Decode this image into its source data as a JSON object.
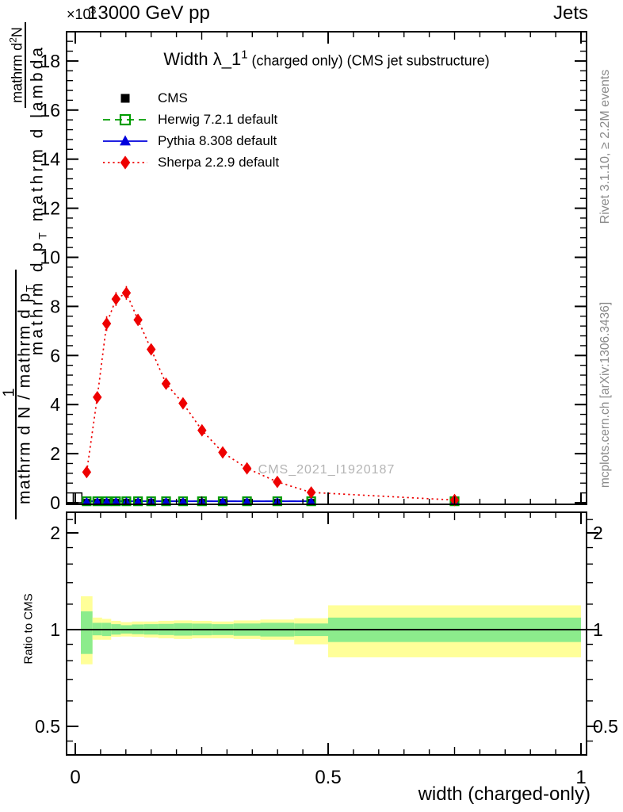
{
  "header": {
    "scale_label": "×10^{3}",
    "beam": "13000 GeV pp",
    "right": "Jets"
  },
  "title": {
    "main": "Width λ_1^{1}",
    "suffix": " (charged only) (CMS jet substructure)"
  },
  "watermark": "CMS_2021_I1920187",
  "side_notes": {
    "top": "Rivet 3.1.10, ≥ 2.2M events",
    "bottom": "mcplots.cern.ch [arXiv:1306.3436]"
  },
  "ylabel_fractions": {
    "f1_num": "1",
    "f1_den": "mathrm d N / mathrm d p_{T}",
    "f2_num": "mathrm d^{2}N",
    "f2_den": "mathrm d p_{T} mathrm d lambda"
  },
  "ratio_ylabel": "Ratio to CMS",
  "xlabel": "width (charged-only)",
  "legend": [
    {
      "label": "CMS",
      "marker": "square-filled",
      "line": "none",
      "color": "#000000"
    },
    {
      "label": "Herwig 7.2.1 default",
      "marker": "square-open",
      "line": "dashed",
      "color": "#009c00"
    },
    {
      "label": "Pythia 8.308 default",
      "marker": "triangle-filled",
      "line": "solid",
      "color": "#0000dd"
    },
    {
      "label": "Sherpa 2.2.9 default",
      "marker": "diamond-filled",
      "line": "dotted",
      "color": "#ee0000"
    }
  ],
  "chart_data": {
    "type": "line",
    "title": "Width λ_1^1 (charged only) (CMS jet substructure)",
    "xlabel": "width (charged-only)",
    "ylabel": "1 / (mathrm dN/mathrm dp_T) · mathrm d^2N / (mathrm dp_T mathrm d lambda)",
    "y_scale_note": "×10^3",
    "xlim": [
      -0.017,
      1.008
    ],
    "ylim": [
      0,
      19200
    ],
    "grid": false,
    "legend_position": "top-left",
    "x_ticks": {
      "major": [
        0,
        0.5,
        1
      ],
      "labels": [
        "0",
        "0.5",
        "1"
      ],
      "medium": [
        0.25,
        0.75
      ],
      "minor_step": 0.05
    },
    "y_ticks": {
      "major_step": 2000,
      "minor_step": 400,
      "labels": [
        "0",
        "2",
        "4",
        "6",
        "8",
        "10",
        "12",
        "14",
        "16",
        "18"
      ]
    },
    "bin_edges": [
      0.011,
      0.034,
      0.053,
      0.071,
      0.09,
      0.112,
      0.136,
      0.164,
      0.195,
      0.231,
      0.27,
      0.313,
      0.366,
      0.433,
      0.5,
      1.0
    ],
    "series": [
      {
        "name": "CMS",
        "color": "#000000",
        "marker": "square-filled",
        "line": "none",
        "x": [
          0.0225,
          0.0435,
          0.062,
          0.0805,
          0.101,
          0.124,
          0.15,
          0.1795,
          0.213,
          0.2505,
          0.2915,
          0.3395,
          0.3995,
          0.4665,
          0.75
        ],
        "y": [
          60,
          60,
          60,
          60,
          60,
          60,
          60,
          60,
          60,
          60,
          60,
          60,
          60,
          60,
          60
        ]
      },
      {
        "name": "Herwig 7.2.1 default",
        "color": "#009c00",
        "marker": "square-open",
        "line": "dashed",
        "x": [
          0.0225,
          0.0435,
          0.062,
          0.0805,
          0.101,
          0.124,
          0.15,
          0.1795,
          0.213,
          0.2505,
          0.2915,
          0.3395,
          0.3995,
          0.4665,
          0.75
        ],
        "y": [
          60,
          60,
          60,
          60,
          60,
          60,
          60,
          60,
          60,
          60,
          60,
          60,
          60,
          60,
          60
        ]
      },
      {
        "name": "Pythia 8.308 default",
        "color": "#0000dd",
        "marker": "triangle-filled",
        "line": "solid",
        "x": [
          0.0225,
          0.0435,
          0.062,
          0.0805,
          0.101,
          0.124,
          0.15,
          0.1795,
          0.213,
          0.2505,
          0.2915,
          0.3395,
          0.3995,
          0.4665,
          0.75
        ],
        "y": [
          60,
          60,
          60,
          60,
          60,
          60,
          60,
          60,
          60,
          60,
          60,
          60,
          60,
          60,
          60
        ]
      },
      {
        "name": "Sherpa 2.2.9 default",
        "color": "#ee0000",
        "marker": "diamond-filled",
        "line": "dotted",
        "x": [
          0.0225,
          0.0435,
          0.062,
          0.0805,
          0.101,
          0.124,
          0.15,
          0.1795,
          0.213,
          0.2505,
          0.2915,
          0.3395,
          0.3995,
          0.4665,
          0.75
        ],
        "y": [
          1250,
          4300,
          7300,
          8300,
          8550,
          7450,
          6250,
          4850,
          4050,
          2950,
          2050,
          1400,
          850,
          420,
          110
        ],
        "yerr": [
          150,
          200,
          300,
          280,
          280,
          230,
          200,
          160,
          130,
          110,
          90,
          70,
          50,
          30,
          15
        ]
      }
    ],
    "ratio": {
      "ylabel": "Ratio to CMS",
      "scale": "log",
      "ylim": [
        0.41,
        2.33
      ],
      "ticks": [
        0.5,
        1,
        2
      ],
      "tick_labels": [
        "0.5",
        "1",
        "2"
      ],
      "minor_ticks": [
        0.45,
        0.6,
        0.7,
        0.8,
        0.9,
        1.2,
        1.4,
        1.6,
        1.8,
        2.2
      ],
      "unity": 1,
      "band_colors": {
        "yellow": "#ffff99",
        "green": "#8cec8c"
      },
      "bands": [
        {
          "x": [
            0.011,
            0.034
          ],
          "yellow": [
            0.78,
            1.27
          ],
          "green": [
            0.84,
            1.14
          ]
        },
        {
          "x": [
            0.034,
            0.053
          ],
          "yellow": [
            0.93,
            1.09
          ],
          "green": [
            0.96,
            1.05
          ]
        },
        {
          "x": [
            0.053,
            0.071
          ],
          "yellow": [
            0.93,
            1.08
          ],
          "green": [
            0.955,
            1.05
          ]
        },
        {
          "x": [
            0.071,
            0.09
          ],
          "yellow": [
            0.95,
            1.065
          ],
          "green": [
            0.965,
            1.04
          ]
        },
        {
          "x": [
            0.09,
            0.112
          ],
          "yellow": [
            0.952,
            1.055
          ],
          "green": [
            0.972,
            1.032
          ]
        },
        {
          "x": [
            0.112,
            0.136
          ],
          "yellow": [
            0.95,
            1.06
          ],
          "green": [
            0.968,
            1.038
          ]
        },
        {
          "x": [
            0.136,
            0.164
          ],
          "yellow": [
            0.945,
            1.06
          ],
          "green": [
            0.965,
            1.04
          ]
        },
        {
          "x": [
            0.164,
            0.195
          ],
          "yellow": [
            0.94,
            1.065
          ],
          "green": [
            0.962,
            1.042
          ]
        },
        {
          "x": [
            0.195,
            0.231
          ],
          "yellow": [
            0.935,
            1.068
          ],
          "green": [
            0.958,
            1.046
          ]
        },
        {
          "x": [
            0.231,
            0.27
          ],
          "yellow": [
            0.94,
            1.065
          ],
          "green": [
            0.96,
            1.044
          ]
        },
        {
          "x": [
            0.27,
            0.313
          ],
          "yellow": [
            0.94,
            1.06
          ],
          "green": [
            0.962,
            1.04
          ]
        },
        {
          "x": [
            0.313,
            0.366
          ],
          "yellow": [
            0.935,
            1.068
          ],
          "green": [
            0.957,
            1.045
          ]
        },
        {
          "x": [
            0.366,
            0.433
          ],
          "yellow": [
            0.93,
            1.075
          ],
          "green": [
            0.952,
            1.05
          ]
        },
        {
          "x": [
            0.433,
            0.5
          ],
          "yellow": [
            0.9,
            1.085
          ],
          "green": [
            0.955,
            1.045
          ]
        },
        {
          "x": [
            0.5,
            1.0
          ],
          "yellow": [
            0.82,
            1.19
          ],
          "green": [
            0.915,
            1.09
          ]
        }
      ]
    },
    "extras": {
      "cms_first_bin_box": {
        "x": [
          -0.004,
          0.013
        ],
        "y": [
          0,
          400
        ]
      }
    }
  }
}
